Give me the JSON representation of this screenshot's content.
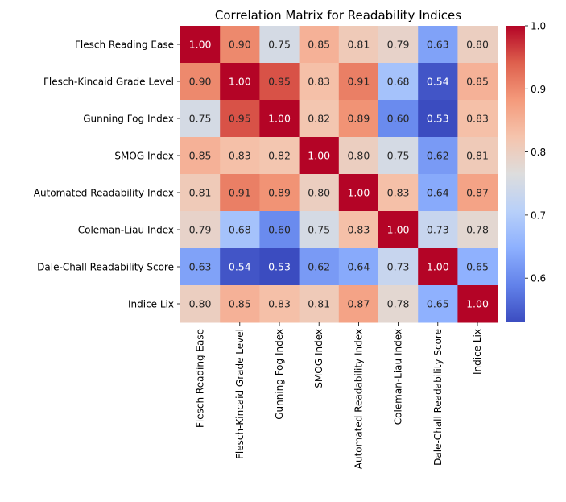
{
  "chart_data": {
    "type": "heatmap",
    "title": "Correlation Matrix for Readability Indices",
    "labels": [
      "Flesch Reading Ease",
      "Flesch-Kincaid Grade Level",
      "Gunning Fog Index",
      "SMOG Index",
      "Automated Readability Index",
      "Coleman-Liau Index",
      "Dale-Chall Readability Score",
      "Indice Lix"
    ],
    "matrix": [
      [
        1.0,
        0.9,
        0.75,
        0.85,
        0.81,
        0.79,
        0.63,
        0.8
      ],
      [
        0.9,
        1.0,
        0.95,
        0.83,
        0.91,
        0.68,
        0.54,
        0.85
      ],
      [
        0.75,
        0.95,
        1.0,
        0.82,
        0.89,
        0.6,
        0.53,
        0.83
      ],
      [
        0.85,
        0.83,
        0.82,
        1.0,
        0.8,
        0.75,
        0.62,
        0.81
      ],
      [
        0.81,
        0.91,
        0.89,
        0.8,
        1.0,
        0.83,
        0.64,
        0.87
      ],
      [
        0.79,
        0.68,
        0.6,
        0.75,
        0.83,
        1.0,
        0.73,
        0.78
      ],
      [
        0.63,
        0.54,
        0.53,
        0.62,
        0.64,
        0.73,
        1.0,
        0.65
      ],
      [
        0.8,
        0.85,
        0.83,
        0.81,
        0.87,
        0.78,
        0.65,
        1.0
      ]
    ],
    "value_format": "2 decimals",
    "colormap": "coolwarm",
    "colorbar": {
      "vmin": 0.53,
      "vmax": 1.0,
      "ticks": [
        "0.6",
        "0.7",
        "0.8",
        "0.9",
        "1.0"
      ]
    }
  }
}
